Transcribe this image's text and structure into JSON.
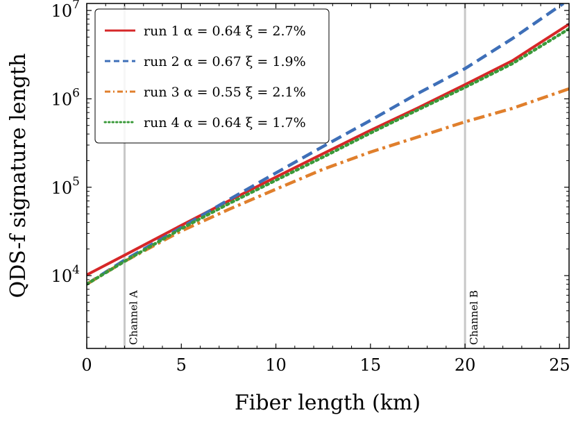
{
  "chart_data": {
    "type": "line",
    "xlabel": "Fiber length (km)",
    "ylabel": "QDS-f signature length",
    "xlim": [
      0,
      25.5
    ],
    "ylim": [
      1500,
      12000000
    ],
    "yscale": "log",
    "grid": false,
    "legend_position": "top-left",
    "x_ticks": [
      0,
      5,
      10,
      15,
      20,
      25
    ],
    "x_tick_labels": [
      "0",
      "5",
      "10",
      "15",
      "20",
      "25"
    ],
    "y_ticks": [
      10000,
      100000,
      1000000,
      10000000
    ],
    "y_tick_labels": [
      {
        "base": "10",
        "exp": "4"
      },
      {
        "base": "10",
        "exp": "5"
      },
      {
        "base": "10",
        "exp": "6"
      },
      {
        "base": "10",
        "exp": "7"
      }
    ],
    "vertical_lines": [
      {
        "x": 2,
        "label": "Channel A"
      },
      {
        "x": 20,
        "label": "Channel B"
      }
    ],
    "series": [
      {
        "name": "run 1 α = 0.64 ξ = 2.7%",
        "color": "#d62728",
        "style": "solid",
        "x": [
          0,
          2,
          5,
          7.5,
          10,
          12.5,
          15,
          17.5,
          20,
          22.5,
          25.5
        ],
        "y": [
          10200,
          17000,
          37000,
          70000,
          130000,
          240000,
          440000,
          790000,
          1450000,
          2700000,
          7000000
        ]
      },
      {
        "name": "run 2 α = 0.67 ξ = 1.9%",
        "color": "#3e6fb8",
        "style": "dashed",
        "x": [
          0,
          2,
          5,
          7.5,
          10,
          12.5,
          15,
          17.5,
          20,
          22.5,
          25.2
        ],
        "y": [
          8000,
          15000,
          35000,
          72000,
          145000,
          290000,
          570000,
          1150000,
          2200000,
          4800000,
          12000000
        ]
      },
      {
        "name": "run 3 α = 0.55 ξ = 2.1%",
        "color": "#e07f2c",
        "style": "dashdot",
        "x": [
          0,
          2,
          5,
          7.5,
          10,
          12.5,
          15,
          17.5,
          20,
          22.5,
          25.5
        ],
        "y": [
          8000,
          14500,
          32000,
          56000,
          95000,
          160000,
          250000,
          370000,
          550000,
          780000,
          1300000
        ]
      },
      {
        "name": "run 4 α = 0.64 ξ = 1.7%",
        "color": "#3a9a3a",
        "style": "dotted",
        "x": [
          0,
          2,
          5,
          7.5,
          10,
          12.5,
          15,
          17.5,
          20,
          22.5,
          25.5
        ],
        "y": [
          8000,
          14500,
          34000,
          65000,
          120000,
          220000,
          410000,
          750000,
          1350000,
          2500000,
          6200000
        ]
      }
    ]
  }
}
